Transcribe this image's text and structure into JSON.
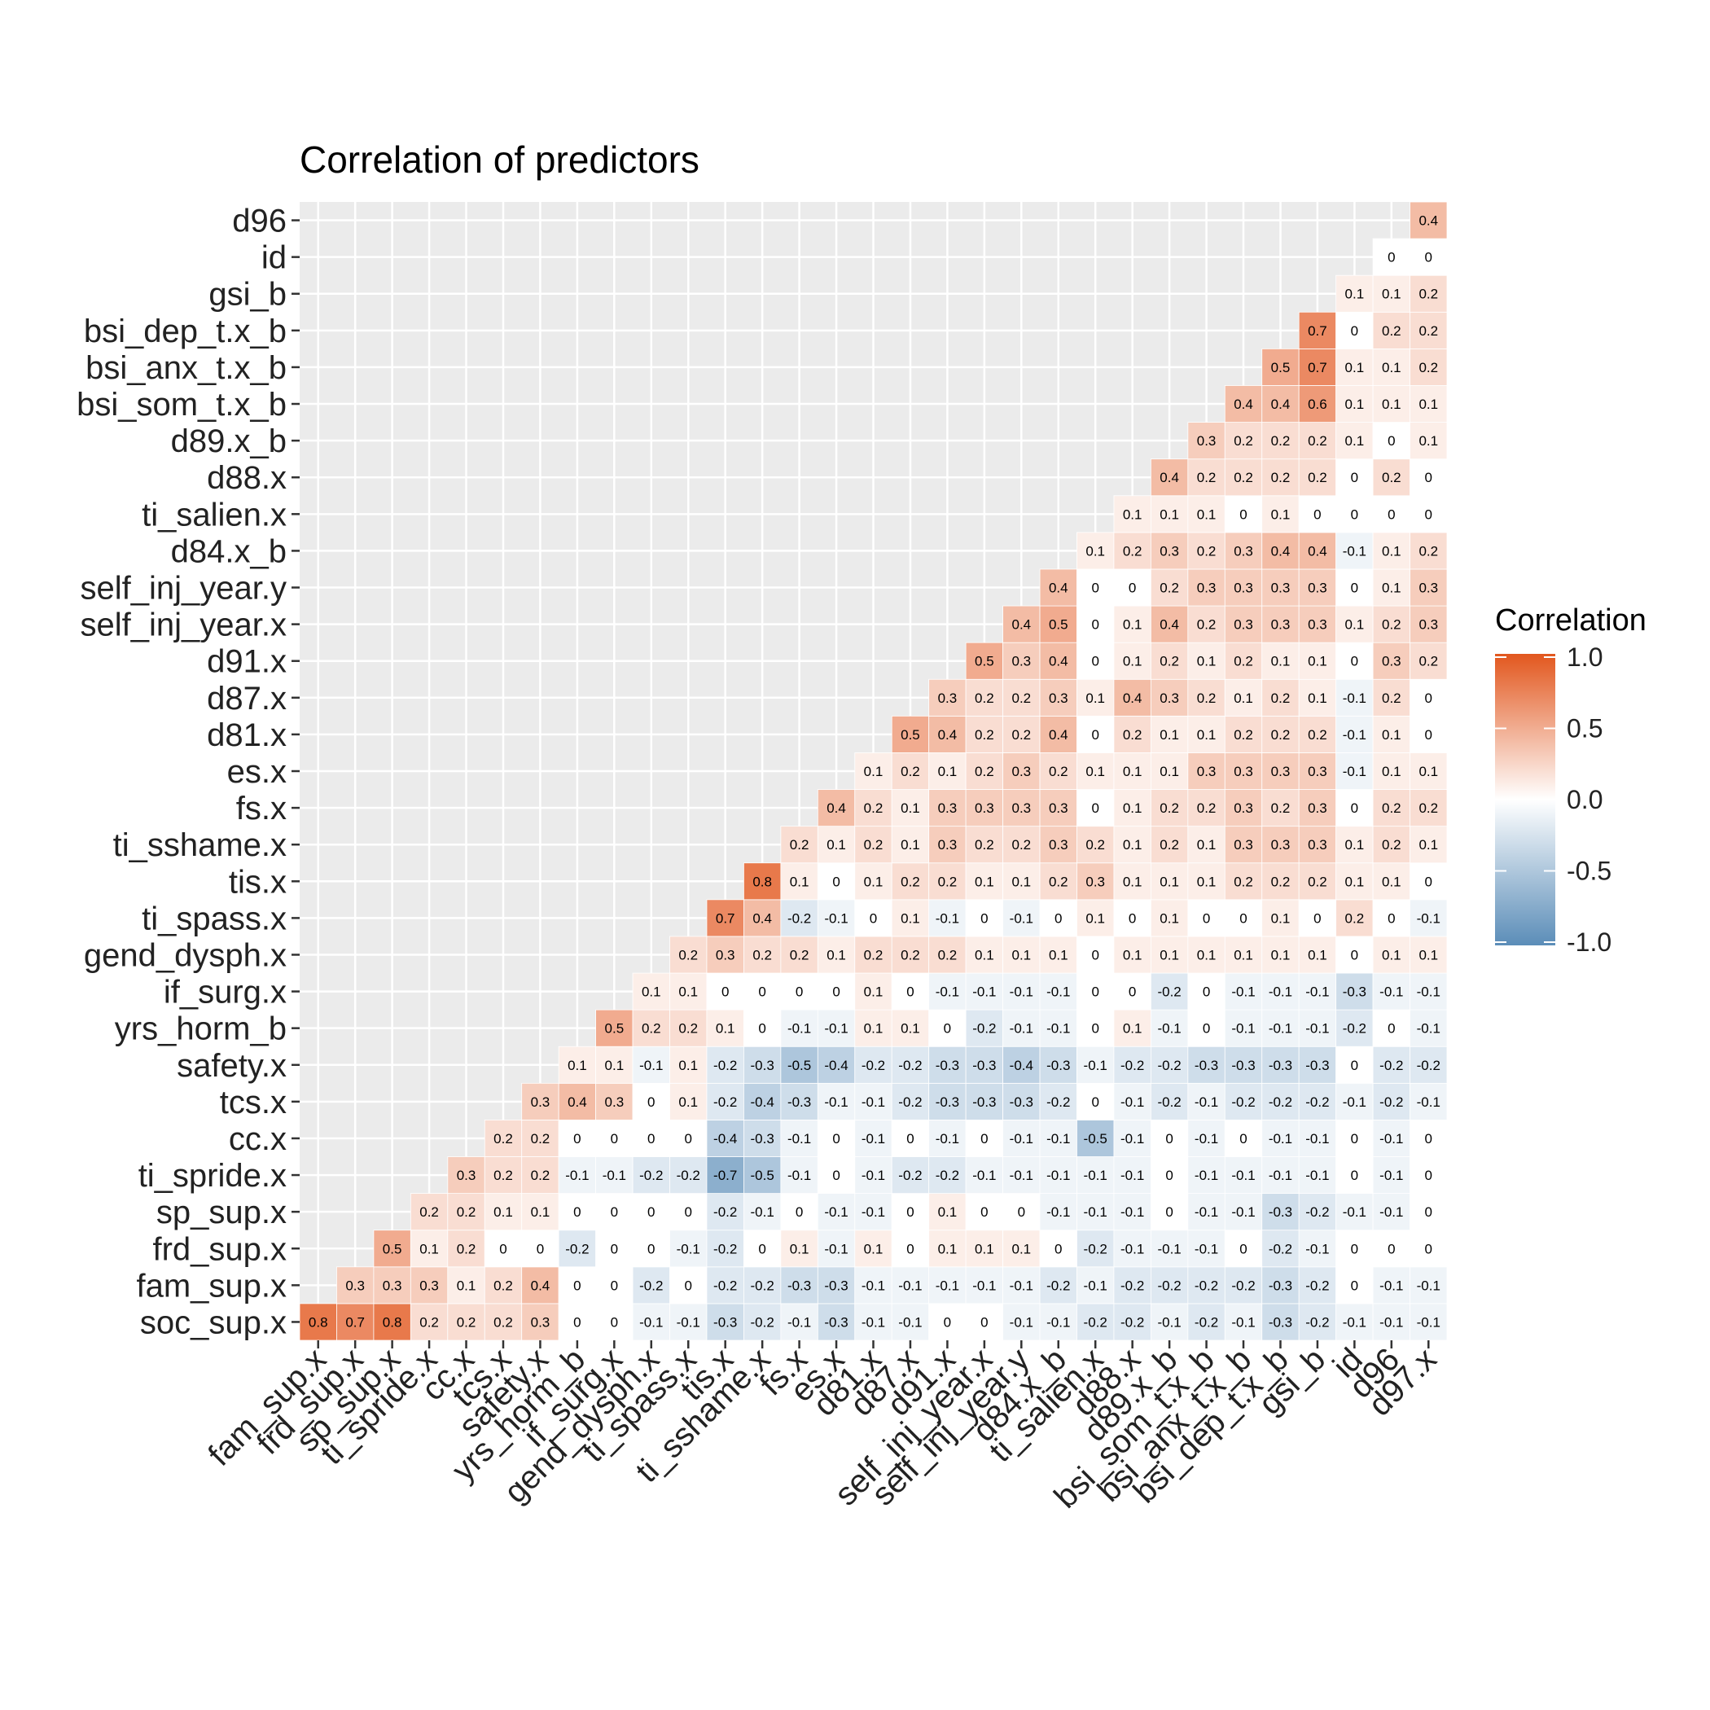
{
  "chart_data": {
    "type": "heatmap",
    "title": "Correlation of predictors",
    "xlabel": "",
    "ylabel": "",
    "x_labels": [
      "fam_sup.x",
      "frd_sup.x",
      "sp_sup.x",
      "ti_spride.x",
      "cc.x",
      "tcs.x",
      "safety.x",
      "yrs_horm_b",
      "if_surg.x",
      "gend_dysph.x",
      "ti_spass.x",
      "tis.x",
      "ti_sshame.x",
      "fs.x",
      "es.x",
      "d81.x",
      "d87.x",
      "d91.x",
      "self_inj_year.x",
      "self_inj_year.y",
      "d84.x_b",
      "ti_salien.x",
      "d88.x",
      "d89.x_b",
      "bsi_som_t.x_b",
      "bsi_anx_t.x_b",
      "bsi_dep_t.x_b",
      "gsi_b",
      "id",
      "d96",
      "d97.x"
    ],
    "y_labels": [
      "soc_sup.x",
      "fam_sup.x",
      "frd_sup.x",
      "sp_sup.x",
      "ti_spride.x",
      "cc.x",
      "tcs.x",
      "safety.x",
      "yrs_horm_b",
      "if_surg.x",
      "gend_dysph.x",
      "ti_spass.x",
      "tis.x",
      "ti_sshame.x",
      "fs.x",
      "es.x",
      "d81.x",
      "d87.x",
      "d91.x",
      "self_inj_year.x",
      "self_inj_year.y",
      "d84.x_b",
      "ti_salien.x",
      "d88.x",
      "d89.x_b",
      "bsi_som_t.x_b",
      "bsi_anx_t.x_b",
      "bsi_dep_t.x_b",
      "gsi_b",
      "id",
      "d96"
    ],
    "values": [
      [
        0.8,
        0.7,
        0.8,
        0.2,
        0.2,
        0.2,
        0.3,
        0,
        0,
        -0.1,
        -0.1,
        -0.3,
        -0.2,
        -0.1,
        -0.3,
        -0.1,
        -0.1,
        0,
        0,
        -0.1,
        -0.1,
        -0.2,
        -0.2,
        -0.1,
        -0.2,
        -0.1,
        -0.3,
        -0.2,
        -0.1,
        -0.1,
        -0.1
      ],
      [
        null,
        0.3,
        0.3,
        0.3,
        0.1,
        0.2,
        0.4,
        0,
        0,
        -0.2,
        0,
        -0.2,
        -0.2,
        -0.3,
        -0.3,
        -0.1,
        -0.1,
        -0.1,
        -0.1,
        -0.1,
        -0.2,
        -0.1,
        -0.2,
        -0.2,
        -0.2,
        -0.2,
        -0.3,
        -0.2,
        0,
        -0.1,
        -0.1
      ],
      [
        null,
        null,
        0.5,
        0.1,
        0.2,
        0,
        0,
        -0.2,
        0,
        0,
        -0.1,
        -0.2,
        0,
        0.1,
        -0.1,
        0.1,
        0,
        0.1,
        0.1,
        0.1,
        0,
        -0.2,
        -0.1,
        -0.1,
        -0.1,
        0,
        -0.2,
        -0.1,
        0,
        0,
        0
      ],
      [
        null,
        null,
        null,
        0.2,
        0.2,
        0.1,
        0.1,
        0,
        0,
        0,
        0,
        -0.2,
        -0.1,
        0,
        -0.1,
        -0.1,
        0,
        0.1,
        0,
        0,
        -0.1,
        -0.1,
        -0.1,
        0,
        -0.1,
        -0.1,
        -0.3,
        -0.2,
        -0.1,
        -0.1,
        0
      ],
      [
        null,
        null,
        null,
        null,
        0.3,
        0.2,
        0.2,
        -0.1,
        -0.1,
        -0.2,
        -0.2,
        -0.7,
        -0.5,
        -0.1,
        0,
        -0.1,
        -0.2,
        -0.2,
        -0.1,
        -0.1,
        -0.1,
        -0.1,
        -0.1,
        0,
        -0.1,
        -0.1,
        -0.1,
        -0.1,
        0,
        -0.1,
        0
      ],
      [
        null,
        null,
        null,
        null,
        null,
        0.2,
        0.2,
        0,
        0,
        0,
        0,
        -0.4,
        -0.3,
        -0.1,
        0,
        -0.1,
        0,
        -0.1,
        0,
        -0.1,
        -0.1,
        -0.5,
        -0.1,
        0,
        -0.1,
        0,
        -0.1,
        -0.1,
        0,
        -0.1,
        0
      ],
      [
        null,
        null,
        null,
        null,
        null,
        null,
        0.3,
        0.4,
        0.3,
        0,
        0.1,
        -0.2,
        -0.4,
        -0.3,
        -0.1,
        -0.1,
        -0.2,
        -0.3,
        -0.3,
        -0.3,
        -0.2,
        0,
        -0.1,
        -0.2,
        -0.1,
        -0.2,
        -0.2,
        -0.2,
        -0.1,
        -0.2,
        -0.1
      ],
      [
        null,
        null,
        null,
        null,
        null,
        null,
        null,
        0.1,
        0.1,
        -0.1,
        0.1,
        -0.2,
        -0.3,
        -0.5,
        -0.4,
        -0.2,
        -0.2,
        -0.3,
        -0.3,
        -0.4,
        -0.3,
        -0.1,
        -0.2,
        -0.2,
        -0.3,
        -0.3,
        -0.3,
        -0.3,
        0,
        -0.2,
        -0.2
      ],
      [
        null,
        null,
        null,
        null,
        null,
        null,
        null,
        null,
        0.5,
        0.2,
        0.2,
        0.1,
        0,
        -0.1,
        -0.1,
        0.1,
        0.1,
        0,
        -0.2,
        -0.1,
        -0.1,
        0,
        0.1,
        -0.1,
        0,
        -0.1,
        -0.1,
        -0.1,
        -0.2,
        0,
        -0.1
      ],
      [
        null,
        null,
        null,
        null,
        null,
        null,
        null,
        null,
        null,
        0.1,
        0.1,
        0,
        0,
        0,
        0,
        0.1,
        0,
        -0.1,
        -0.1,
        -0.1,
        -0.1,
        0,
        0,
        -0.2,
        0,
        -0.1,
        -0.1,
        -0.1,
        -0.3,
        -0.1,
        -0.1
      ],
      [
        null,
        null,
        null,
        null,
        null,
        null,
        null,
        null,
        null,
        null,
        0.2,
        0.3,
        0.2,
        0.2,
        0.1,
        0.2,
        0.2,
        0.2,
        0.1,
        0.1,
        0.1,
        0,
        0.1,
        0.1,
        0.1,
        0.1,
        0.1,
        0.1,
        0,
        0.1,
        0.1
      ],
      [
        null,
        null,
        null,
        null,
        null,
        null,
        null,
        null,
        null,
        null,
        null,
        0.7,
        0.4,
        -0.2,
        -0.1,
        0,
        0.1,
        -0.1,
        0,
        -0.1,
        0,
        0.1,
        0,
        0.1,
        0,
        0,
        0.1,
        0,
        0.2,
        0,
        -0.1
      ],
      [
        null,
        null,
        null,
        null,
        null,
        null,
        null,
        null,
        null,
        null,
        null,
        null,
        0.8,
        0.1,
        0,
        0.1,
        0.2,
        0.2,
        0.1,
        0.1,
        0.2,
        0.3,
        0.1,
        0.1,
        0.1,
        0.2,
        0.2,
        0.2,
        0.1,
        0.1,
        0
      ],
      [
        null,
        null,
        null,
        null,
        null,
        null,
        null,
        null,
        null,
        null,
        null,
        null,
        null,
        0.2,
        0.1,
        0.2,
        0.1,
        0.3,
        0.2,
        0.2,
        0.3,
        0.2,
        0.1,
        0.2,
        0.1,
        0.3,
        0.3,
        0.3,
        0.1,
        0.2,
        0.1
      ],
      [
        null,
        null,
        null,
        null,
        null,
        null,
        null,
        null,
        null,
        null,
        null,
        null,
        null,
        null,
        0.4,
        0.2,
        0.1,
        0.3,
        0.3,
        0.3,
        0.3,
        0,
        0.1,
        0.2,
        0.2,
        0.3,
        0.2,
        0.3,
        0,
        0.2,
        0.2
      ],
      [
        null,
        null,
        null,
        null,
        null,
        null,
        null,
        null,
        null,
        null,
        null,
        null,
        null,
        null,
        null,
        0.1,
        0.2,
        0.1,
        0.2,
        0.3,
        0.2,
        0.1,
        0.1,
        0.1,
        0.3,
        0.3,
        0.3,
        0.3,
        -0.1,
        0.1,
        0.1
      ],
      [
        null,
        null,
        null,
        null,
        null,
        null,
        null,
        null,
        null,
        null,
        null,
        null,
        null,
        null,
        null,
        null,
        0.5,
        0.4,
        0.2,
        0.2,
        0.4,
        0,
        0.2,
        0.1,
        0.1,
        0.2,
        0.2,
        0.2,
        -0.1,
        0.1,
        0
      ],
      [
        null,
        null,
        null,
        null,
        null,
        null,
        null,
        null,
        null,
        null,
        null,
        null,
        null,
        null,
        null,
        null,
        null,
        0.3,
        0.2,
        0.2,
        0.3,
        0.1,
        0.4,
        0.3,
        0.2,
        0.1,
        0.2,
        0.1,
        -0.1,
        0.2,
        0
      ],
      [
        null,
        null,
        null,
        null,
        null,
        null,
        null,
        null,
        null,
        null,
        null,
        null,
        null,
        null,
        null,
        null,
        null,
        null,
        0.5,
        0.3,
        0.4,
        0,
        0.1,
        0.2,
        0.1,
        0.2,
        0.1,
        0.1,
        0,
        0.3,
        0.2
      ],
      [
        null,
        null,
        null,
        null,
        null,
        null,
        null,
        null,
        null,
        null,
        null,
        null,
        null,
        null,
        null,
        null,
        null,
        null,
        null,
        0.4,
        0.5,
        0,
        0.1,
        0.4,
        0.2,
        0.3,
        0.3,
        0.3,
        0.1,
        0.2,
        0.3
      ],
      [
        null,
        null,
        null,
        null,
        null,
        null,
        null,
        null,
        null,
        null,
        null,
        null,
        null,
        null,
        null,
        null,
        null,
        null,
        null,
        null,
        0.4,
        0,
        0,
        0.2,
        0.3,
        0.3,
        0.3,
        0.3,
        0,
        0.1,
        0.3
      ],
      [
        null,
        null,
        null,
        null,
        null,
        null,
        null,
        null,
        null,
        null,
        null,
        null,
        null,
        null,
        null,
        null,
        null,
        null,
        null,
        null,
        null,
        0.1,
        0.2,
        0.3,
        0.2,
        0.3,
        0.4,
        0.4,
        -0.1,
        0.1,
        0.2
      ],
      [
        null,
        null,
        null,
        null,
        null,
        null,
        null,
        null,
        null,
        null,
        null,
        null,
        null,
        null,
        null,
        null,
        null,
        null,
        null,
        null,
        null,
        null,
        0.1,
        0.1,
        0.1,
        0,
        0.1,
        0,
        0,
        0,
        0
      ],
      [
        null,
        null,
        null,
        null,
        null,
        null,
        null,
        null,
        null,
        null,
        null,
        null,
        null,
        null,
        null,
        null,
        null,
        null,
        null,
        null,
        null,
        null,
        null,
        0.4,
        0.2,
        0.2,
        0.2,
        0.2,
        0,
        0.2,
        0
      ],
      [
        null,
        null,
        null,
        null,
        null,
        null,
        null,
        null,
        null,
        null,
        null,
        null,
        null,
        null,
        null,
        null,
        null,
        null,
        null,
        null,
        null,
        null,
        null,
        null,
        0.3,
        0.2,
        0.2,
        0.2,
        0.1,
        0,
        0.1
      ],
      [
        null,
        null,
        null,
        null,
        null,
        null,
        null,
        null,
        null,
        null,
        null,
        null,
        null,
        null,
        null,
        null,
        null,
        null,
        null,
        null,
        null,
        null,
        null,
        null,
        null,
        0.4,
        0.4,
        0.6,
        0.1,
        0.1,
        0.1
      ],
      [
        null,
        null,
        null,
        null,
        null,
        null,
        null,
        null,
        null,
        null,
        null,
        null,
        null,
        null,
        null,
        null,
        null,
        null,
        null,
        null,
        null,
        null,
        null,
        null,
        null,
        null,
        0.5,
        0.7,
        0.1,
        0.1,
        0.2
      ],
      [
        null,
        null,
        null,
        null,
        null,
        null,
        null,
        null,
        null,
        null,
        null,
        null,
        null,
        null,
        null,
        null,
        null,
        null,
        null,
        null,
        null,
        null,
        null,
        null,
        null,
        null,
        null,
        0.7,
        0,
        0.2,
        0.2
      ],
      [
        null,
        null,
        null,
        null,
        null,
        null,
        null,
        null,
        null,
        null,
        null,
        null,
        null,
        null,
        null,
        null,
        null,
        null,
        null,
        null,
        null,
        null,
        null,
        null,
        null,
        null,
        null,
        null,
        0.1,
        0.1,
        0.2
      ],
      [
        null,
        null,
        null,
        null,
        null,
        null,
        null,
        null,
        null,
        null,
        null,
        null,
        null,
        null,
        null,
        null,
        null,
        null,
        null,
        null,
        null,
        null,
        null,
        null,
        null,
        null,
        null,
        null,
        null,
        0,
        0
      ],
      [
        null,
        null,
        null,
        null,
        null,
        null,
        null,
        null,
        null,
        null,
        null,
        null,
        null,
        null,
        null,
        null,
        null,
        null,
        null,
        null,
        null,
        null,
        null,
        null,
        null,
        null,
        null,
        null,
        null,
        null,
        0.4
      ]
    ],
    "color_scale": {
      "low": "#5b8db8",
      "mid": "#ffffff",
      "high": "#e2571e",
      "limits": [
        -1,
        1
      ]
    },
    "panel_background": "#ebebeb",
    "grid": true,
    "legend": {
      "title": "Correlation",
      "ticks": [
        "1.0",
        "0.5",
        "0.0",
        "-0.5",
        "-1.0"
      ],
      "placement": "right"
    }
  }
}
